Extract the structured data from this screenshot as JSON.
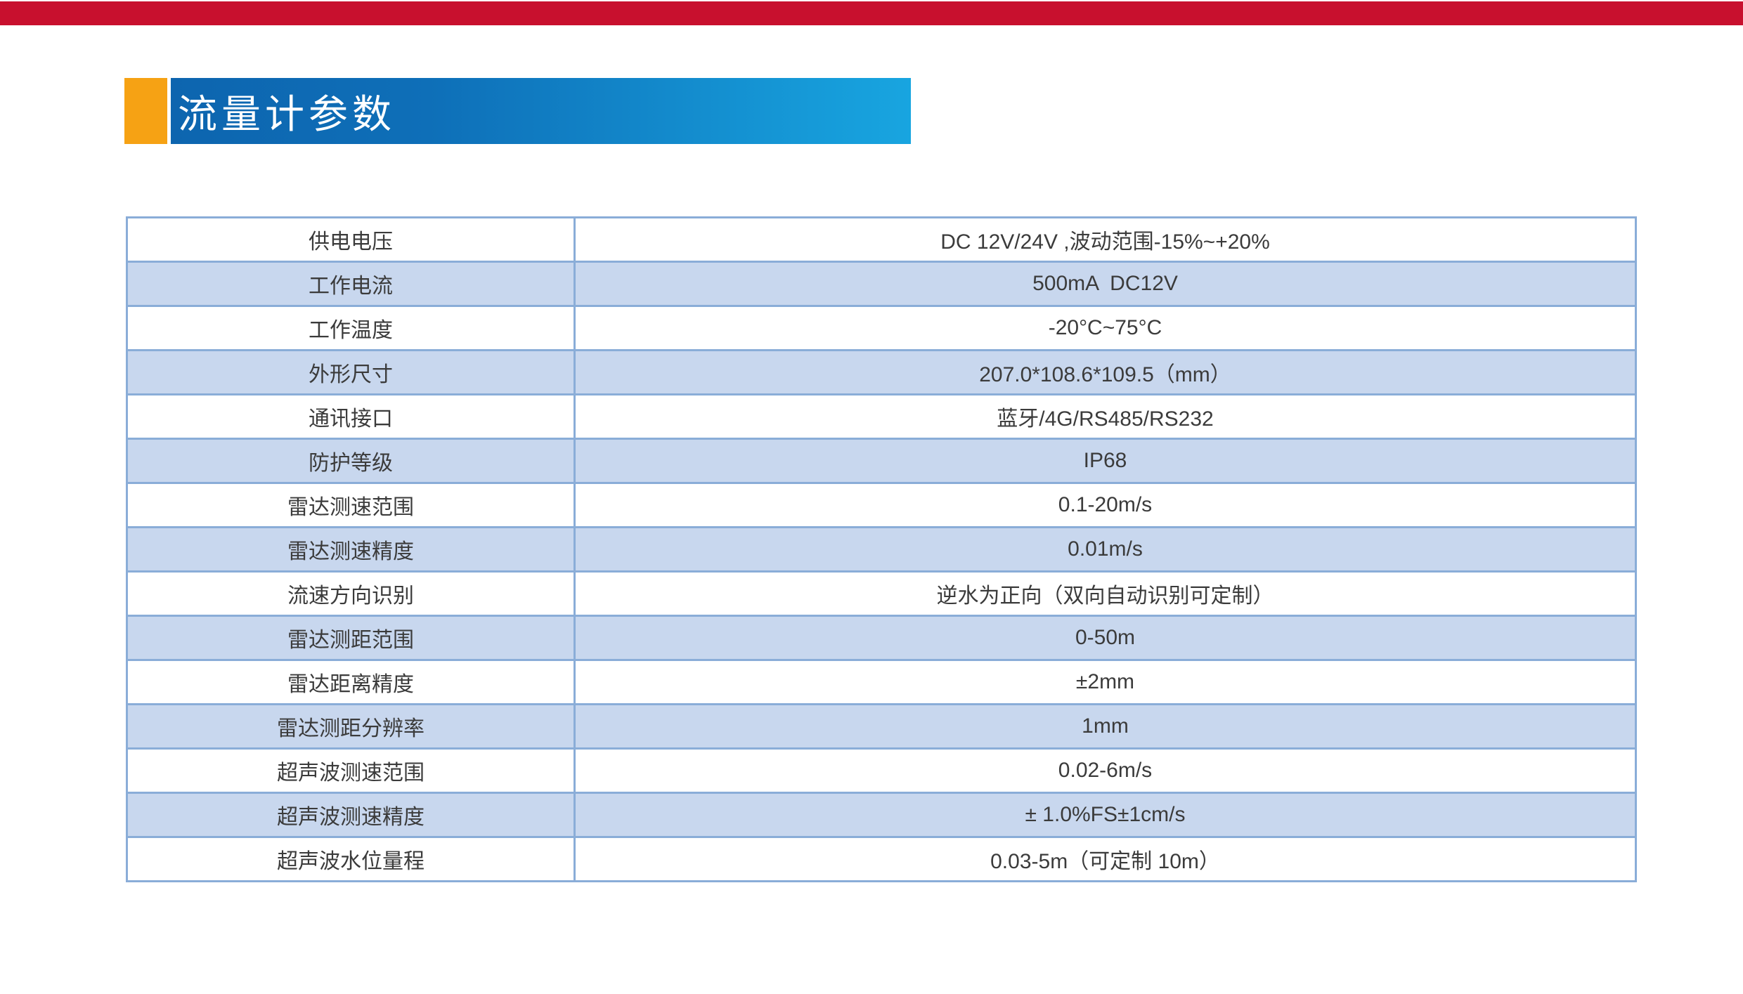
{
  "page": {
    "background": "#ffffff"
  },
  "top_bar": {
    "color": "#c8102e"
  },
  "header": {
    "title": "流量计参数",
    "accent_color": "#f6a214",
    "gradient_start": "#0d65af",
    "gradient_end": "#18a5e0",
    "text_color": "#ffffff"
  },
  "table": {
    "border_color": "#8aadd8",
    "alt_row_color": "#c8d7ee",
    "text_color": "#3b3b3b",
    "rows": [
      {
        "label": "供电电压",
        "value": "DC 12V/24V ,波动范围-15%~+20%"
      },
      {
        "label": "工作电流",
        "value": "500mA  DC12V"
      },
      {
        "label": "工作温度",
        "value": "-20°C~75°C"
      },
      {
        "label": "外形尺寸",
        "value": "207.0*108.6*109.5（mm）"
      },
      {
        "label": "通讯接口",
        "value": "蓝牙/4G/RS485/RS232"
      },
      {
        "label": "防护等级",
        "value": "IP68"
      },
      {
        "label": "雷达测速范围",
        "value": "0.1-20m/s"
      },
      {
        "label": "雷达测速精度",
        "value": "0.01m/s"
      },
      {
        "label": "流速方向识别",
        "value": "逆水为正向（双向自动识别可定制）"
      },
      {
        "label": "雷达测距范围",
        "value": "0-50m"
      },
      {
        "label": "雷达距离精度",
        "value": "±2mm"
      },
      {
        "label": "雷达测距分辨率",
        "value": "1mm"
      },
      {
        "label": "超声波测速范围",
        "value": "0.02-6m/s"
      },
      {
        "label": "超声波测速精度",
        "value": "± 1.0%FS±1cm/s"
      },
      {
        "label": "超声波水位量程",
        "value": "0.03-5m（可定制 10m）"
      }
    ]
  }
}
